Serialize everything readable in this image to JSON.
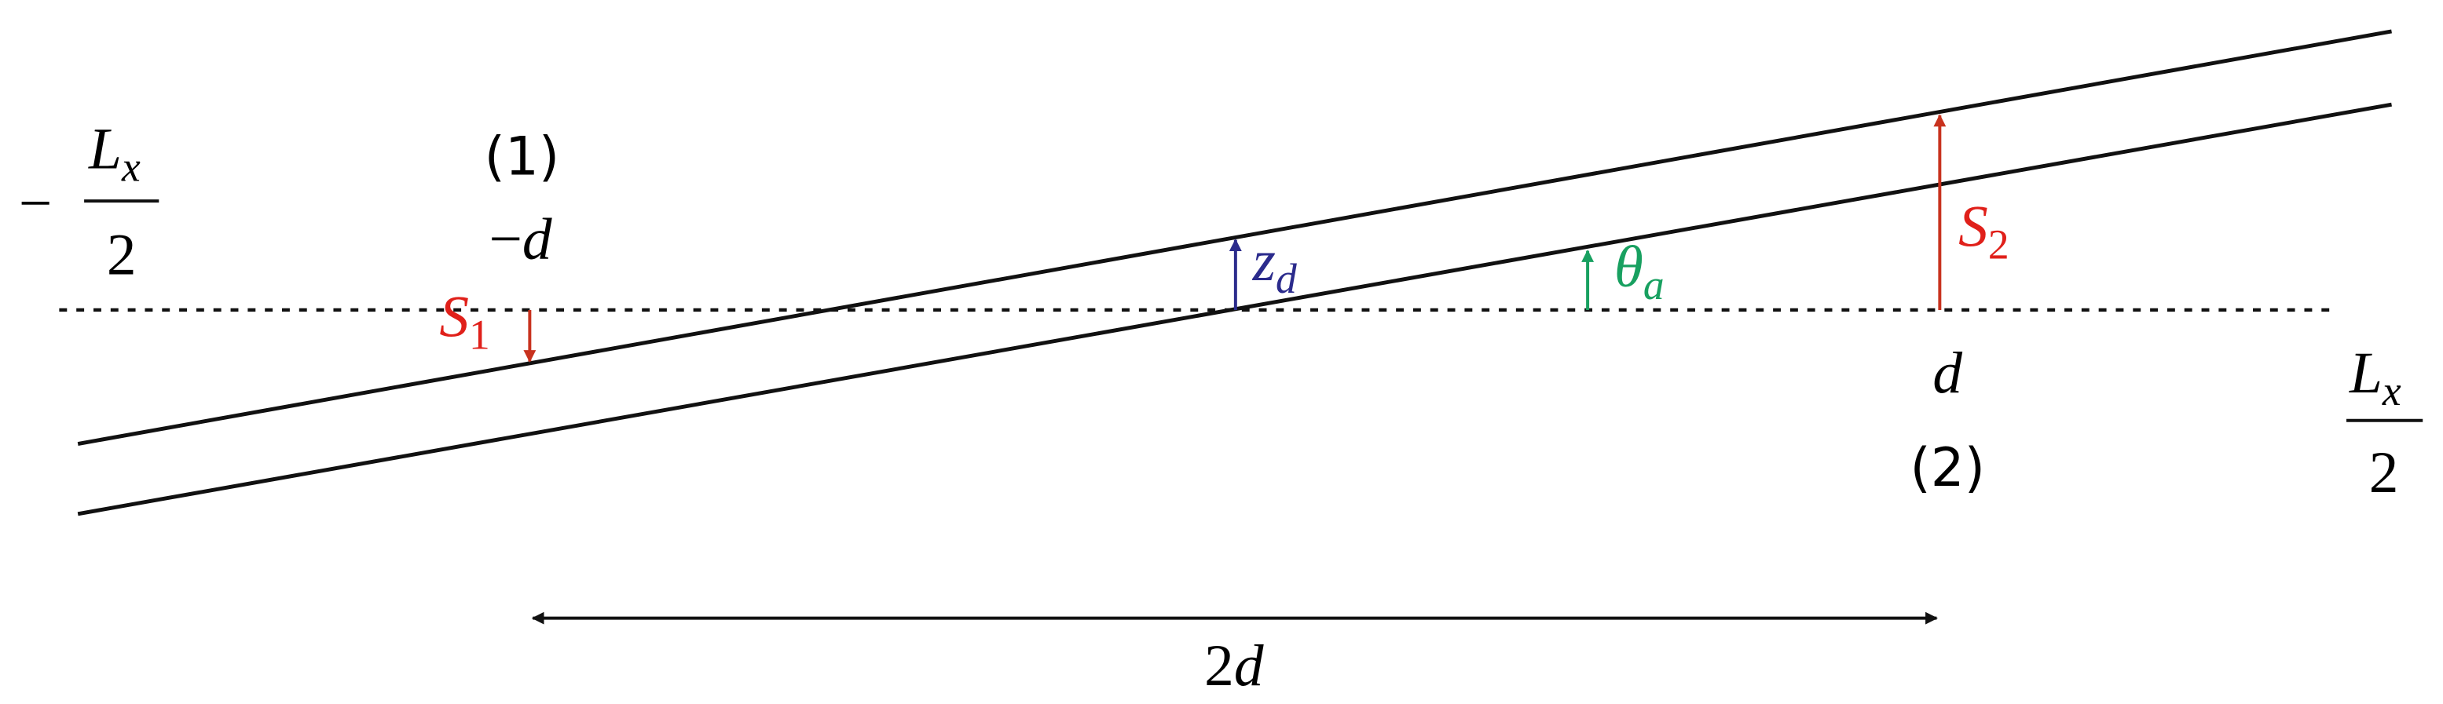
{
  "labels": {
    "left_bound": {
      "sign": "−",
      "numerator": "L",
      "numerator_sub": "x",
      "denominator": "2"
    },
    "point_1": "(1)",
    "neg_d": {
      "sign": "−",
      "var": "d"
    },
    "s1": {
      "base": "S",
      "sub": "1"
    },
    "zd": {
      "base": "z",
      "sub": "d"
    },
    "theta_a": {
      "base": "θ",
      "sub": "a"
    },
    "s2": {
      "base": "S",
      "sub": "2"
    },
    "d": "d",
    "point_2": "(2)",
    "right_bound": {
      "numerator": "L",
      "numerator_sub": "x",
      "denominator": "2"
    },
    "two_d": {
      "coef": "2",
      "var": "d"
    }
  }
}
